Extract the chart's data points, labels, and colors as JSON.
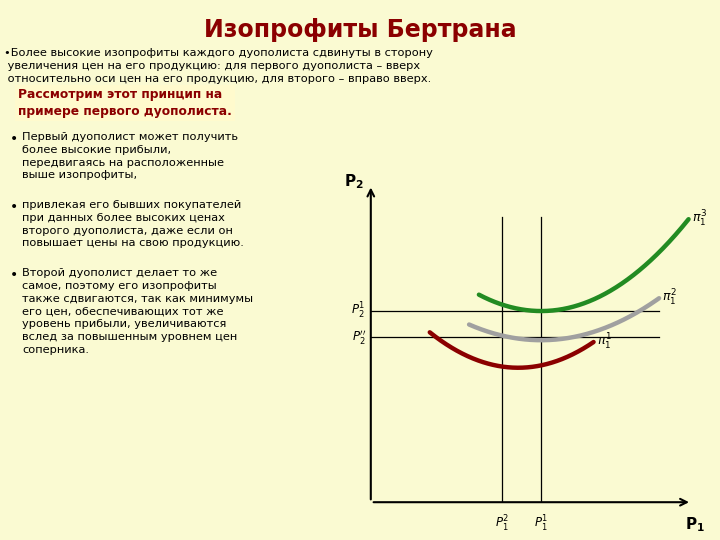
{
  "title": "Изопрофиты Бертрана",
  "title_color": "#8B0000",
  "bg_color": "#FAFAD2",
  "bullet_text_1": "•Более высокие изопрофиты каждого дуополиста сдвинуты в сторону\n увеличения цен на его продукцию: для первого дуополиста – вверх\n относительно оси цен на его продукцию, для второго – вправо вверх.",
  "red_text": "Рассмотрим этот принцип на\nпримере первого дуополиста.",
  "bullet_text_2": "Первый дуополист может получить\nболее высокие прибыли,\nпередвигаясь на расположенные\nвыше изопрофиты,",
  "bullet_text_3": "привлекая его бывших покупателей\nпри данных более высоких ценах\nвторого дуополиста, даже если он\nповышает цены на свою продукцию.",
  "bullet_text_4": "Второй дуополист делает то же\nсамое, поэтому его изопрофиты\nтакже сдвигаются, так как минимумы\nего цен, обеспечивающих тот же\nуровень прибыли, увеличиваются\nвслед за повышенным уровнем цен\nсоперника.",
  "curve_green_color": "#228B22",
  "curve_gray_color": "#A0A0A0",
  "curve_red_color": "#8B0000",
  "axis_color": "#000000"
}
